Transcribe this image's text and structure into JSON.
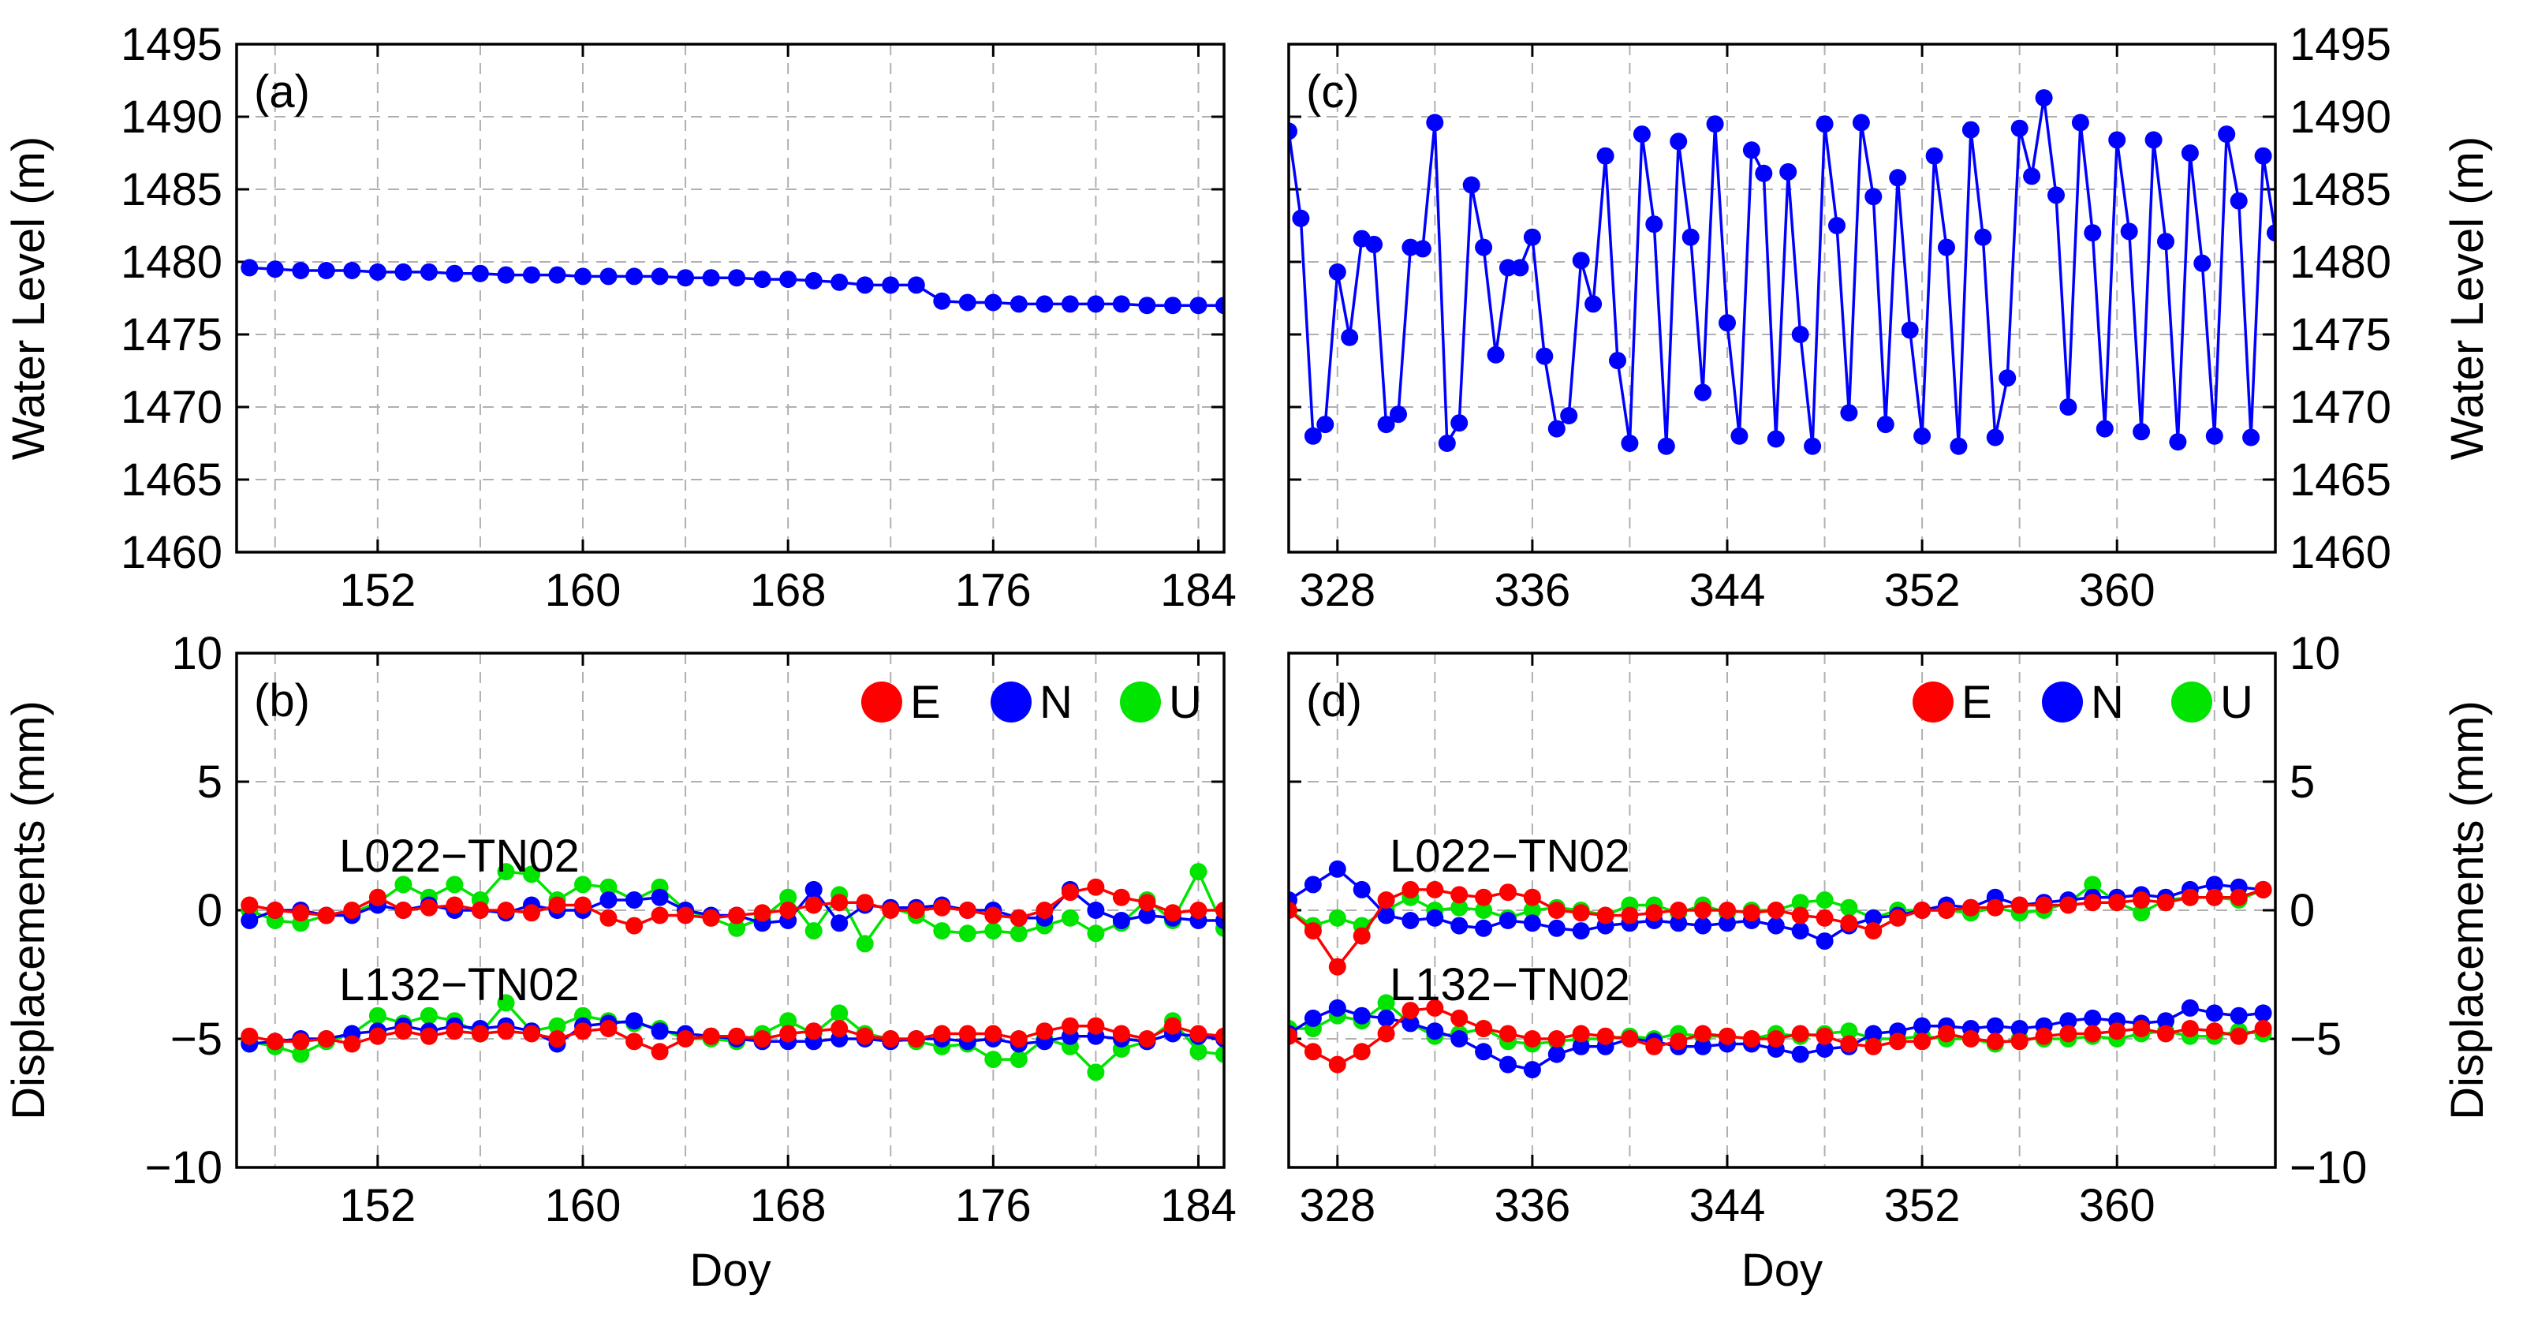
{
  "figure": {
    "xlabel_bottom": "Doy"
  },
  "colors": {
    "E": "#ff0000",
    "N": "#0000ff",
    "U": "#00e400",
    "water": "#0000ff",
    "grid": "#b0b0b0"
  },
  "chart_data": [
    {
      "panel": "a",
      "label": "(a)",
      "type": "line",
      "ylabel": "Water Level (m)",
      "ylim": [
        1460,
        1495
      ],
      "yticks": [
        1460,
        1465,
        1470,
        1475,
        1480,
        1485,
        1490,
        1495
      ],
      "yticklabels": [
        "1460",
        "1465",
        "1470",
        "1475",
        "1480",
        "1485",
        "1490",
        "1495"
      ],
      "xlim": [
        146.5,
        185
      ],
      "xticks": [
        152,
        160,
        168,
        176,
        184
      ],
      "xticklabels": [
        "152",
        "160",
        "168",
        "176",
        "184"
      ],
      "x": [
        147,
        148,
        149,
        150,
        151,
        152,
        153,
        154,
        155,
        156,
        157,
        158,
        159,
        160,
        161,
        162,
        163,
        164,
        165,
        166,
        167,
        168,
        169,
        170,
        171,
        172,
        173,
        174,
        175,
        176,
        177,
        178,
        179,
        180,
        181,
        182,
        183,
        184,
        185
      ],
      "values": [
        1479.6,
        1479.5,
        1479.4,
        1479.4,
        1479.4,
        1479.3,
        1479.3,
        1479.3,
        1479.2,
        1479.2,
        1479.1,
        1479.1,
        1479.1,
        1479.0,
        1479.0,
        1479.0,
        1479.0,
        1478.9,
        1478.9,
        1478.9,
        1478.8,
        1478.8,
        1478.7,
        1478.6,
        1478.4,
        1478.4,
        1478.4,
        1477.3,
        1477.2,
        1477.2,
        1477.1,
        1477.1,
        1477.1,
        1477.1,
        1477.1,
        1477.0,
        1477.0,
        1477.0,
        1477.0
      ]
    },
    {
      "panel": "b",
      "label": "(b)",
      "type": "line",
      "ylabel": "Displacements (mm)",
      "ylim": [
        -10,
        10
      ],
      "yticks": [
        -10,
        -5,
        0,
        5,
        10
      ],
      "yticklabels": [
        "−10",
        "−5",
        "0",
        "5",
        "10"
      ],
      "xlim": [
        146.5,
        185
      ],
      "xticks": [
        152,
        160,
        168,
        176,
        184
      ],
      "xticklabels": [
        "152",
        "160",
        "168",
        "176",
        "184"
      ],
      "xlabel": "Doy",
      "legend": [
        "E",
        "N",
        "U"
      ],
      "annotations": [
        "L022−TN02",
        "L132−TN02"
      ],
      "x": [
        147,
        148,
        149,
        150,
        151,
        152,
        153,
        154,
        155,
        156,
        157,
        158,
        159,
        160,
        161,
        162,
        163,
        164,
        165,
        166,
        167,
        168,
        169,
        170,
        171,
        172,
        173,
        174,
        175,
        176,
        177,
        178,
        179,
        180,
        181,
        182,
        183,
        184,
        185
      ],
      "series": [
        {
          "name": "L022 E",
          "component": "E",
          "values": [
            0.2,
            0.0,
            -0.1,
            -0.2,
            0.0,
            0.5,
            0.0,
            0.1,
            0.2,
            0.0,
            0.0,
            -0.1,
            0.2,
            0.2,
            -0.3,
            -0.6,
            -0.2,
            -0.2,
            -0.3,
            -0.2,
            -0.1,
            0.0,
            0.2,
            0.3,
            0.3,
            0.0,
            0.0,
            0.1,
            0.0,
            -0.2,
            -0.3,
            0.0,
            0.7,
            0.9,
            0.5,
            0.3,
            -0.1,
            0.0,
            0.0
          ]
        },
        {
          "name": "L022 N",
          "component": "N",
          "values": [
            -0.4,
            0.0,
            0.0,
            -0.2,
            -0.2,
            0.2,
            0.0,
            0.2,
            0.0,
            0.0,
            -0.1,
            0.2,
            0.0,
            0.0,
            0.4,
            0.4,
            0.5,
            0.0,
            -0.2,
            -0.2,
            -0.5,
            -0.4,
            0.8,
            -0.5,
            0.2,
            0.1,
            0.1,
            0.2,
            0.0,
            0.0,
            -0.3,
            -0.3,
            0.8,
            0.0,
            -0.4,
            -0.2,
            -0.3,
            -0.4,
            -0.4
          ]
        },
        {
          "name": "L022 U",
          "component": "U",
          "values": [
            0.0,
            -0.4,
            -0.5,
            -0.2,
            -0.1,
            0.3,
            1.0,
            0.5,
            1.0,
            0.4,
            1.5,
            1.4,
            0.4,
            1.0,
            0.9,
            0.4,
            0.9,
            0.0,
            -0.3,
            -0.7,
            -0.3,
            0.5,
            -0.8,
            0.6,
            -1.3,
            0.1,
            -0.2,
            -0.8,
            -0.9,
            -0.8,
            -0.9,
            -0.6,
            -0.3,
            -0.9,
            -0.5,
            0.4,
            -0.4,
            1.5,
            -0.7
          ]
        },
        {
          "name": "L132 E",
          "component": "E",
          "values": [
            -4.9,
            -5.1,
            -5.1,
            -5.0,
            -5.2,
            -4.9,
            -4.7,
            -4.9,
            -4.7,
            -4.8,
            -4.7,
            -4.8,
            -5.0,
            -4.7,
            -4.6,
            -5.1,
            -5.5,
            -5.0,
            -4.9,
            -4.9,
            -5.0,
            -4.8,
            -4.7,
            -4.6,
            -4.9,
            -5.0,
            -5.0,
            -4.8,
            -4.8,
            -4.8,
            -5.0,
            -4.7,
            -4.5,
            -4.5,
            -4.8,
            -5.0,
            -4.5,
            -4.8,
            -4.9
          ]
        },
        {
          "name": "L132 N",
          "component": "N",
          "values": [
            -5.2,
            -5.1,
            -5.0,
            -5.0,
            -4.8,
            -4.7,
            -4.5,
            -4.7,
            -4.5,
            -4.6,
            -4.5,
            -4.7,
            -5.2,
            -4.5,
            -4.4,
            -4.3,
            -4.7,
            -4.8,
            -4.9,
            -5.0,
            -5.1,
            -5.1,
            -5.1,
            -5.0,
            -5.0,
            -5.1,
            -5.0,
            -5.0,
            -5.1,
            -5.0,
            -5.2,
            -5.1,
            -4.9,
            -4.9,
            -5.0,
            -5.1,
            -4.8,
            -4.9,
            -5.0
          ]
        },
        {
          "name": "L132 U",
          "component": "U",
          "values": [
            -5.1,
            -5.3,
            -5.6,
            -5.1,
            -4.8,
            -4.1,
            -4.4,
            -4.1,
            -4.3,
            -4.8,
            -3.6,
            -4.7,
            -4.5,
            -4.1,
            -4.3,
            -4.4,
            -4.6,
            -5.0,
            -5.0,
            -5.1,
            -4.8,
            -4.3,
            -4.8,
            -4.0,
            -4.8,
            -5.0,
            -5.1,
            -5.3,
            -5.2,
            -5.8,
            -5.8,
            -5.0,
            -5.3,
            -6.3,
            -5.4,
            -5.1,
            -4.3,
            -5.5,
            -5.6
          ]
        }
      ]
    },
    {
      "panel": "c",
      "label": "(c)",
      "type": "line",
      "ylabel": "Water Level (m)",
      "ylim": [
        1460,
        1495
      ],
      "yticks": [
        1460,
        1465,
        1470,
        1475,
        1480,
        1485,
        1490,
        1495
      ],
      "yticklabels": [
        "1460",
        "1465",
        "1470",
        "1475",
        "1480",
        "1485",
        "1490",
        "1495"
      ],
      "xlim": [
        326,
        366.5
      ],
      "xticks": [
        328,
        336,
        344,
        352,
        360
      ],
      "xticklabels": [
        "328",
        "336",
        "344",
        "352",
        "360"
      ],
      "x": [
        326.0,
        326.5,
        327.0,
        327.5,
        328.0,
        328.5,
        329.0,
        329.5,
        330.0,
        330.5,
        331.0,
        331.5,
        332.0,
        332.5,
        333.0,
        333.5,
        334.0,
        334.5,
        335.0,
        335.5,
        336.0,
        336.5,
        337.0,
        337.5,
        338.0,
        338.5,
        339.0,
        339.5,
        340.0,
        340.5,
        341.0,
        341.5,
        342.0,
        342.5,
        343.0,
        343.5,
        344.0,
        344.5,
        345.0,
        345.5,
        346.0,
        346.5,
        347.0,
        347.5,
        348.0,
        348.5,
        349.0,
        349.5,
        350.0,
        350.5,
        351.0,
        351.5,
        352.0,
        352.5,
        353.0,
        353.5,
        354.0,
        354.5,
        355.0,
        355.5,
        356.0,
        356.5,
        357.0,
        357.5,
        358.0,
        358.5,
        359.0,
        359.5,
        360.0,
        360.5,
        361.0,
        361.5,
        362.0,
        362.5,
        363.0,
        363.5,
        364.0,
        364.5,
        365.0,
        365.5,
        366.0,
        366.5
      ],
      "values": [
        1489.0,
        1483.0,
        1468.0,
        1468.8,
        1479.3,
        1474.8,
        1481.6,
        1481.2,
        1468.8,
        1469.5,
        1481.0,
        1480.9,
        1489.6,
        1467.5,
        1468.9,
        1485.3,
        1481.0,
        1473.6,
        1479.6,
        1479.6,
        1481.7,
        1473.5,
        1468.5,
        1469.4,
        1480.1,
        1477.1,
        1487.3,
        1473.2,
        1467.5,
        1488.8,
        1482.6,
        1467.3,
        1488.3,
        1481.7,
        1471.0,
        1489.5,
        1475.8,
        1468.0,
        1487.7,
        1486.1,
        1467.8,
        1486.2,
        1475.0,
        1467.3,
        1489.5,
        1482.5,
        1469.6,
        1489.6,
        1484.5,
        1468.8,
        1485.8,
        1475.3,
        1468.0,
        1487.3,
        1481.0,
        1467.3,
        1489.1,
        1481.7,
        1467.9,
        1472.0,
        1489.2,
        1485.9,
        1491.3,
        1484.6,
        1470.0,
        1489.6,
        1482.0,
        1468.5,
        1488.4,
        1482.1,
        1468.3,
        1488.4,
        1481.4,
        1467.6,
        1487.5,
        1479.9,
        1468.0,
        1488.8,
        1484.2,
        1467.9,
        1487.3,
        1482.0
      ]
    },
    {
      "panel": "d",
      "label": "(d)",
      "type": "line",
      "ylabel": "Displacements (mm)",
      "ylim": [
        -10,
        10
      ],
      "yticks": [
        -10,
        -5,
        0,
        5,
        10
      ],
      "yticklabels": [
        "−10",
        "−5",
        "0",
        "5",
        "10"
      ],
      "xlim": [
        326,
        366.5
      ],
      "xticks": [
        328,
        336,
        344,
        352,
        360
      ],
      "xticklabels": [
        "328",
        "336",
        "344",
        "352",
        "360"
      ],
      "xlabel": "Doy",
      "legend": [
        "E",
        "N",
        "U"
      ],
      "annotations": [
        "L022−TN02",
        "L132−TN02"
      ],
      "x": [
        326,
        327,
        328,
        329,
        330,
        331,
        332,
        333,
        334,
        335,
        336,
        337,
        338,
        339,
        340,
        341,
        342,
        343,
        344,
        345,
        346,
        347,
        348,
        349,
        350,
        351,
        352,
        353,
        354,
        355,
        356,
        357,
        358,
        359,
        360,
        361,
        362,
        363,
        364,
        365,
        366
      ],
      "series": [
        {
          "name": "L022 E",
          "component": "E",
          "values": [
            0.0,
            -0.8,
            -2.2,
            -1.0,
            0.4,
            0.8,
            0.8,
            0.6,
            0.5,
            0.7,
            0.5,
            0.0,
            -0.1,
            -0.2,
            -0.2,
            -0.1,
            0.0,
            0.0,
            0.0,
            -0.1,
            0.0,
            -0.2,
            -0.3,
            -0.5,
            -0.8,
            -0.3,
            0.0,
            0.0,
            0.1,
            0.1,
            0.2,
            0.2,
            0.2,
            0.3,
            0.3,
            0.4,
            0.3,
            0.5,
            0.5,
            0.5,
            0.8
          ]
        },
        {
          "name": "L022 N",
          "component": "N",
          "values": [
            0.4,
            1.0,
            1.6,
            0.8,
            -0.2,
            -0.4,
            -0.3,
            -0.6,
            -0.7,
            -0.4,
            -0.5,
            -0.7,
            -0.8,
            -0.6,
            -0.5,
            -0.4,
            -0.5,
            -0.6,
            -0.5,
            -0.4,
            -0.6,
            -0.8,
            -1.2,
            -0.6,
            -0.3,
            -0.2,
            0.0,
            0.2,
            0.1,
            0.5,
            0.2,
            0.3,
            0.4,
            0.5,
            0.5,
            0.6,
            0.5,
            0.8,
            1.0,
            0.9,
            0.8
          ]
        },
        {
          "name": "L022 U",
          "component": "U",
          "values": [
            0.0,
            -0.6,
            -0.3,
            -0.6,
            0.0,
            0.5,
            0.0,
            0.1,
            0.0,
            -0.3,
            0.0,
            0.1,
            0.0,
            -0.2,
            0.2,
            0.2,
            -0.1,
            0.2,
            -0.1,
            0.0,
            0.0,
            0.3,
            0.4,
            0.1,
            -0.3,
            0.0,
            0.0,
            0.0,
            -0.1,
            0.1,
            -0.1,
            0.0,
            0.3,
            1.0,
            0.3,
            -0.1,
            0.4,
            0.5,
            0.5,
            0.4,
            0.8
          ]
        },
        {
          "name": "L132 E",
          "component": "E",
          "values": [
            -4.9,
            -5.5,
            -6.0,
            -5.5,
            -4.8,
            -3.9,
            -3.8,
            -4.2,
            -4.6,
            -4.8,
            -5.0,
            -5.0,
            -4.8,
            -4.9,
            -5.0,
            -5.3,
            -5.1,
            -4.8,
            -4.9,
            -5.0,
            -5.0,
            -4.8,
            -4.9,
            -5.2,
            -5.3,
            -5.1,
            -5.1,
            -4.8,
            -5.0,
            -5.1,
            -5.1,
            -4.9,
            -4.8,
            -4.8,
            -4.7,
            -4.6,
            -4.8,
            -4.6,
            -4.7,
            -4.9,
            -4.6
          ]
        },
        {
          "name": "L132 N",
          "component": "N",
          "values": [
            -4.8,
            -4.2,
            -3.8,
            -4.1,
            -4.2,
            -4.4,
            -4.7,
            -5.0,
            -5.5,
            -6.0,
            -6.2,
            -5.6,
            -5.3,
            -5.3,
            -5.0,
            -5.1,
            -5.3,
            -5.3,
            -5.2,
            -5.2,
            -5.4,
            -5.6,
            -5.4,
            -5.3,
            -4.8,
            -4.7,
            -4.5,
            -4.5,
            -4.6,
            -4.5,
            -4.6,
            -4.5,
            -4.3,
            -4.2,
            -4.3,
            -4.4,
            -4.3,
            -3.8,
            -4.0,
            -4.1,
            -4.0
          ]
        },
        {
          "name": "L132 U",
          "component": "U",
          "values": [
            -4.6,
            -4.6,
            -4.1,
            -4.3,
            -3.6,
            -4.4,
            -4.9,
            -4.8,
            -4.6,
            -5.1,
            -5.2,
            -5.1,
            -5.0,
            -5.0,
            -4.9,
            -5.0,
            -4.8,
            -4.9,
            -4.9,
            -5.0,
            -4.8,
            -4.9,
            -4.8,
            -4.7,
            -5.0,
            -5.0,
            -4.9,
            -5.0,
            -5.0,
            -5.2,
            -5.0,
            -5.0,
            -5.0,
            -4.9,
            -5.0,
            -4.8,
            -4.7,
            -4.9,
            -4.9,
            -4.7,
            -4.8
          ]
        }
      ]
    }
  ]
}
